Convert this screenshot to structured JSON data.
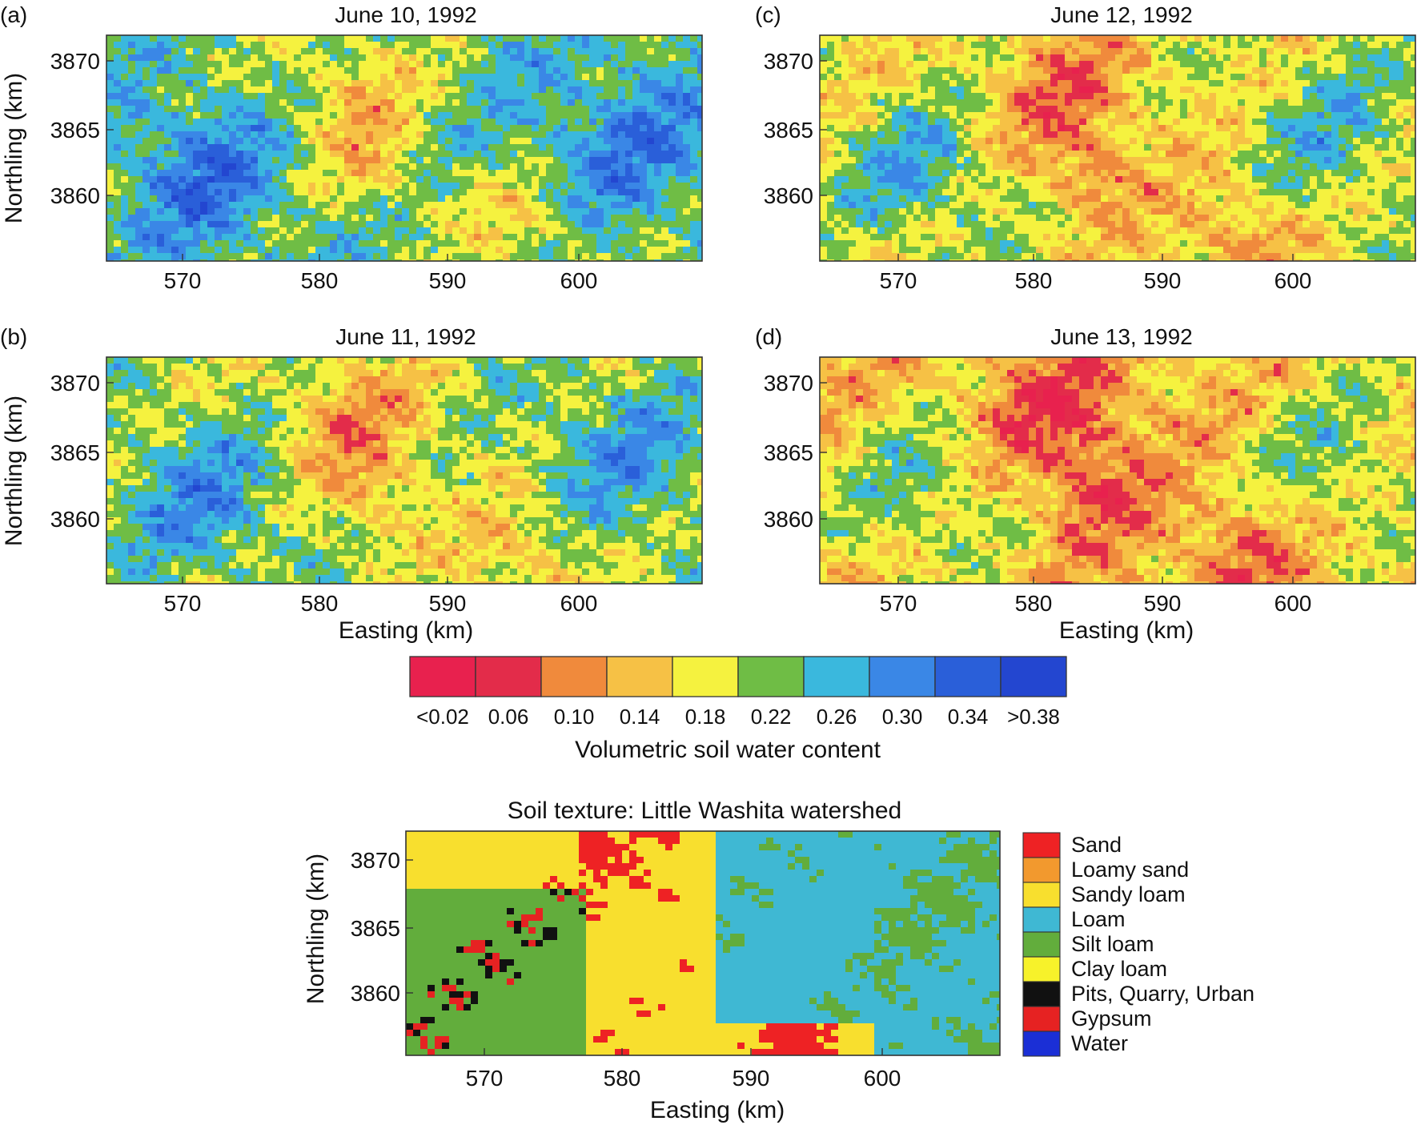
{
  "colors": {
    "moisture_classes": [
      "#e8214e",
      "#e32c4a",
      "#f08a3c",
      "#f6c145",
      "#f5f23f",
      "#6fbd45",
      "#3ab8dd",
      "#3a87e6",
      "#2a5fd9",
      "#2346d0"
    ],
    "soil_classes": [
      "#ee2224",
      "#f2992e",
      "#f8df2e",
      "#3fb8d3",
      "#62ad3c",
      "#f7f22a",
      "#111111",
      "#e62222",
      "#1b2fd6"
    ]
  },
  "maps": [
    {
      "label": "(a)",
      "title": "June 10, 1992",
      "x_ticks": [
        "570",
        "580",
        "590",
        "600"
      ],
      "y_ticks": [
        "3870",
        "3865",
        "3860"
      ],
      "ylabel": "Northling (km)",
      "xlabel": ""
    },
    {
      "label": "(b)",
      "title": "June 11, 1992",
      "x_ticks": [
        "570",
        "580",
        "590",
        "600"
      ],
      "y_ticks": [
        "3870",
        "3865",
        "3860"
      ],
      "ylabel": "Northling (km)",
      "xlabel": "Easting (km)"
    },
    {
      "label": "(c)",
      "title": "June 12, 1992",
      "x_ticks": [
        "570",
        "580",
        "590",
        "600"
      ],
      "y_ticks": [
        "3870",
        "3865",
        "3860"
      ],
      "ylabel": "",
      "xlabel": ""
    },
    {
      "label": "(d)",
      "title": "June 13, 1992",
      "x_ticks": [
        "570",
        "580",
        "590",
        "600"
      ],
      "y_ticks": [
        "3870",
        "3865",
        "3860"
      ],
      "ylabel": "",
      "xlabel": "Easting (km)"
    },
    {
      "label": "",
      "title": "Soil texture: Little Washita watershed",
      "x_ticks": [
        "570",
        "580",
        "590",
        "600"
      ],
      "y_ticks": [
        "3870",
        "3865",
        "3860"
      ],
      "ylabel": "Northling (km)",
      "xlabel": "Easting (km)"
    }
  ],
  "colorbar": {
    "labels": [
      "<0.02",
      "0.06",
      "0.10",
      "0.14",
      "0.18",
      "0.22",
      "0.26",
      "0.30",
      "0.34",
      ">0.38"
    ],
    "title": "Volumetric soil water content"
  },
  "soil_legend": {
    "items": [
      "Sand",
      "Loamy sand",
      "Sandy loam",
      "Loam",
      "Silt loam",
      "Clay loam",
      "Pits, Quarry, Urban",
      "Gypsum",
      "Water"
    ]
  }
}
